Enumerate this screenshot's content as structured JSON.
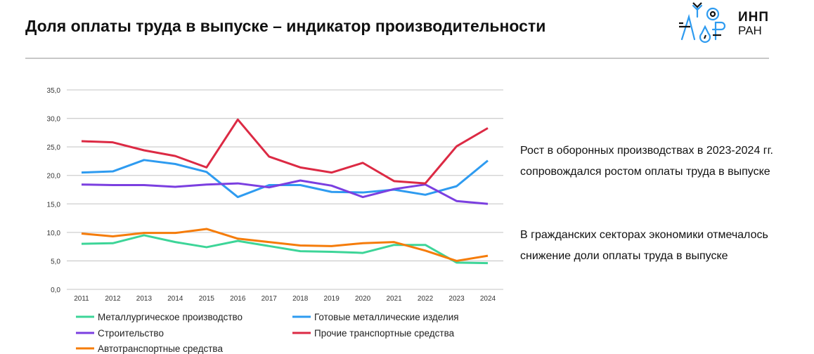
{
  "title": "Доля оплаты труда в выпуске – индикатор производительности",
  "logo": {
    "line1": "ИНП",
    "line2": "РАН"
  },
  "side_text": [
    "Рост в оборонных производствах  в 2023-2024 гг. сопровождался ростом оплаты труда в выпуске",
    "В гражданских секторах экономики отмечалось снижение доли оплаты труда в выпуске"
  ],
  "chart_data": {
    "type": "line",
    "title": "",
    "xlabel": "",
    "ylabel": "",
    "ylim": [
      0,
      35
    ],
    "yticks": [
      "0,0",
      "5,0",
      "10,0",
      "15,0",
      "20,0",
      "25,0",
      "30,0",
      "35,0"
    ],
    "grid": true,
    "legend_position": "bottom",
    "categories": [
      "2011",
      "2012",
      "2013",
      "2014",
      "2015",
      "2016",
      "2017",
      "2018",
      "2019",
      "2020",
      "2021",
      "2022",
      "2023",
      "2024"
    ],
    "series": [
      {
        "name": "Металлургическое производство",
        "color": "#3dd598",
        "values": [
          8.0,
          8.1,
          9.5,
          8.3,
          7.4,
          8.5,
          7.6,
          6.7,
          6.6,
          6.4,
          7.8,
          7.8,
          4.7,
          4.6
        ]
      },
      {
        "name": "Готовые металлические изделия",
        "color": "#2e9bf0",
        "values": [
          20.5,
          20.7,
          22.7,
          22.0,
          20.6,
          16.2,
          18.3,
          18.3,
          17.1,
          17.0,
          17.5,
          16.6,
          18.1,
          22.6
        ]
      },
      {
        "name": "Строительство",
        "color": "#7b3fe0",
        "values": [
          18.4,
          18.3,
          18.3,
          18.0,
          18.4,
          18.6,
          17.9,
          19.1,
          18.2,
          16.2,
          17.6,
          18.4,
          15.5,
          15.0
        ]
      },
      {
        "name": "Прочие транспортные средства",
        "color": "#dc2a44",
        "values": [
          26.0,
          25.8,
          24.4,
          23.4,
          21.4,
          29.8,
          23.3,
          21.4,
          20.5,
          22.2,
          19.0,
          18.6,
          25.1,
          28.3
        ]
      },
      {
        "name": "Автотранспортные средства",
        "color": "#f57c0a",
        "values": [
          9.8,
          9.3,
          9.9,
          9.9,
          10.6,
          8.9,
          8.3,
          7.7,
          7.6,
          8.1,
          8.3,
          6.8,
          5.0,
          5.9
        ]
      }
    ]
  }
}
